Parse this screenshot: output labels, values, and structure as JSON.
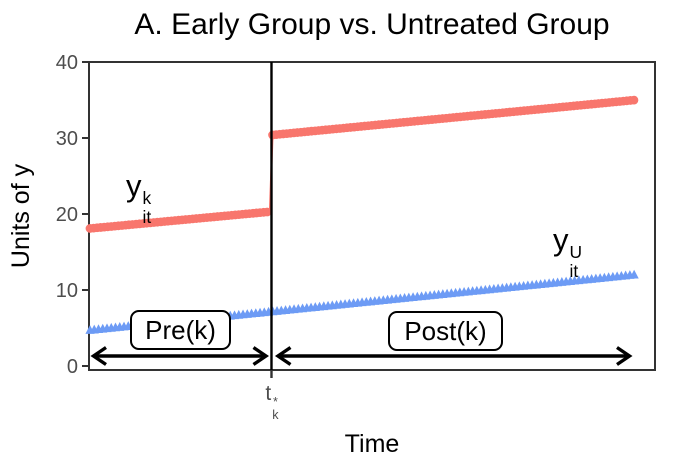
{
  "chart_data": {
    "type": "line",
    "title": "A. Early Group vs. Untreated Group",
    "xlabel": "Time",
    "ylabel": "Units of y",
    "xlim": [
      0,
      10
    ],
    "ylim": [
      0,
      40
    ],
    "yticks": [
      0,
      10,
      20,
      30,
      40
    ],
    "grid": false,
    "panel_border": true,
    "legend_position": "none (direct series labels)",
    "axis_text_color": "#4d4d4d",
    "axis_line_color": "#333333",
    "treatment_time": 3.33,
    "xtick_label": {
      "base": "t",
      "sup": "*",
      "sub": "k"
    },
    "series": [
      {
        "name": "early-treated-group",
        "label": {
          "base": "y",
          "sup": "k",
          "sub": "it"
        },
        "color": "#F8766D",
        "marker": "circle",
        "segments": [
          {
            "x": [
              0,
              3.3
            ],
            "y": [
              18.1,
              20.3
            ]
          },
          {
            "x": [
              3.35,
              10
            ],
            "y": [
              30.4,
              35.0
            ]
          }
        ],
        "jump": {
          "at": 3.33,
          "from": 20.3,
          "to": 30.4,
          "size": 10
        }
      },
      {
        "name": "untreated-group",
        "label": {
          "base": "y",
          "sup": "U",
          "sub": "it"
        },
        "color": "#6D9BF5",
        "marker": "triangle",
        "segments": [
          {
            "x": [
              0,
              10
            ],
            "y": [
              4.7,
              12.0
            ]
          }
        ]
      }
    ],
    "annotations": {
      "pre_label": "Pre(k)",
      "post_label": "Post(k)",
      "vline_color": "#000000",
      "arrow_color": "#000000"
    }
  }
}
